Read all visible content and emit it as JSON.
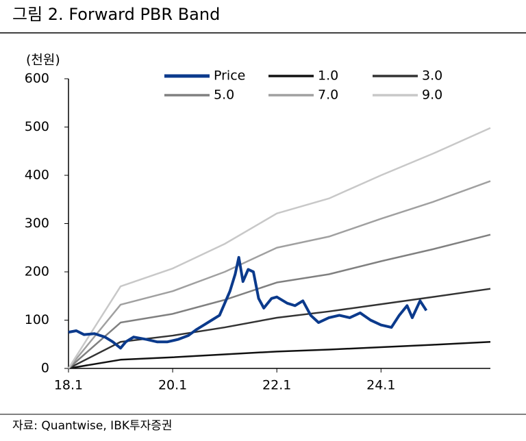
{
  "title": "그림 2. Forward PBR Band",
  "source": "자료: Quantwise, IBK투자증권",
  "chart_data": {
    "type": "line",
    "y_unit": "(천원)",
    "xlim": [
      18,
      26.1
    ],
    "xticks": [
      {
        "value": 18,
        "label": "18.1"
      },
      {
        "value": 20,
        "label": "20.1"
      },
      {
        "value": 22,
        "label": "22.1"
      },
      {
        "value": 24,
        "label": "24.1"
      }
    ],
    "ylim": [
      0,
      600
    ],
    "yticks": [
      0,
      100,
      200,
      300,
      400,
      500,
      600
    ],
    "grid": false,
    "legend": "top",
    "series": [
      {
        "name": "Price",
        "color": "#0b3a8c",
        "width": 4,
        "x": [
          18.0,
          18.15,
          18.3,
          18.5,
          18.7,
          18.85,
          19.0,
          19.1,
          19.25,
          19.5,
          19.7,
          19.9,
          20.1,
          20.3,
          20.45,
          20.6,
          20.75,
          20.9,
          21.0,
          21.1,
          21.2,
          21.27,
          21.35,
          21.45,
          21.55,
          21.65,
          21.75,
          21.9,
          22.0,
          22.2,
          22.35,
          22.5,
          22.65,
          22.8,
          23.0,
          23.2,
          23.4,
          23.6,
          23.8,
          24.0,
          24.2,
          24.35,
          24.5,
          24.6,
          24.75,
          24.87
        ],
        "values": [
          75,
          78,
          70,
          72,
          65,
          55,
          42,
          55,
          65,
          60,
          55,
          55,
          60,
          68,
          80,
          90,
          100,
          110,
          135,
          160,
          195,
          230,
          180,
          205,
          200,
          145,
          125,
          145,
          148,
          135,
          130,
          140,
          110,
          95,
          105,
          110,
          105,
          115,
          100,
          90,
          85,
          110,
          130,
          105,
          140,
          120
        ]
      },
      {
        "name": "1.0",
        "color": "#111111",
        "width": 2.5,
        "x": [
          18,
          19,
          20,
          21,
          22,
          23,
          24,
          25,
          26.1
        ],
        "values": [
          0,
          18,
          23,
          29,
          35,
          39,
          44,
          49,
          55
        ]
      },
      {
        "name": "3.0",
        "color": "#333333",
        "width": 2.5,
        "x": [
          18,
          19,
          20,
          21,
          22,
          23,
          24,
          25,
          26.1
        ],
        "values": [
          0,
          55,
          68,
          85,
          105,
          118,
          133,
          148,
          165
        ]
      },
      {
        "name": "5.0",
        "color": "#808080",
        "width": 2.5,
        "x": [
          18,
          19,
          20,
          21,
          22,
          23,
          24,
          25,
          26.1
        ],
        "values": [
          0,
          95,
          113,
          142,
          178,
          195,
          222,
          247,
          277
        ]
      },
      {
        "name": "7.0",
        "color": "#a0a0a0",
        "width": 2.5,
        "x": [
          18,
          19,
          20,
          21,
          22,
          23,
          24,
          25,
          26.1
        ],
        "values": [
          0,
          132,
          160,
          200,
          250,
          273,
          310,
          345,
          388
        ]
      },
      {
        "name": "9.0",
        "color": "#c8c8c8",
        "width": 2.5,
        "x": [
          18,
          19,
          20,
          21,
          22,
          23,
          24,
          25,
          26.1
        ],
        "values": [
          0,
          170,
          207,
          258,
          321,
          352,
          400,
          445,
          498
        ]
      }
    ]
  }
}
